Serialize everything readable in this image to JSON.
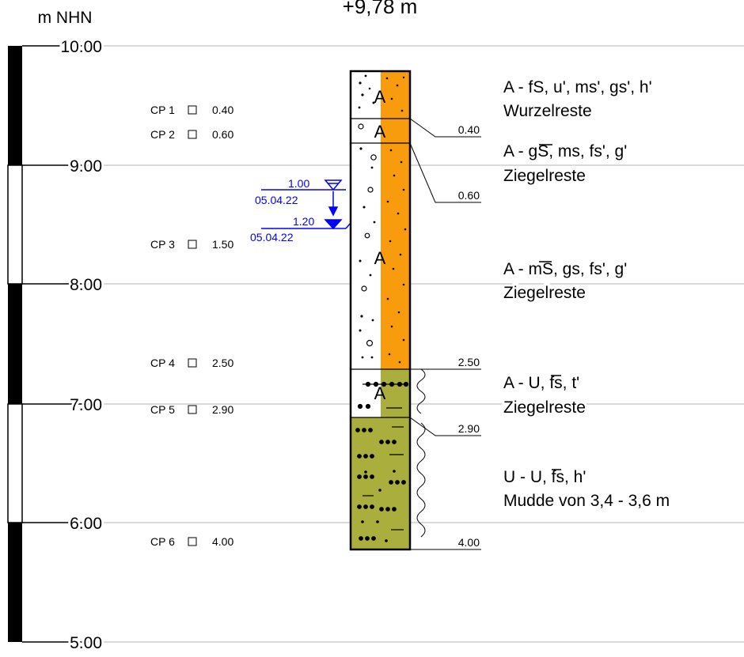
{
  "header": {
    "elevation_title": "+9,78 m",
    "unit_label": "m NHN"
  },
  "scale": {
    "labels": [
      "10.00",
      "9.00",
      "8.00",
      "7.00",
      "6.00",
      "5.00"
    ],
    "top_value": 10.0,
    "bottom_value": 5.0
  },
  "core_samples": [
    {
      "label": "CP 1",
      "depth": "0.40"
    },
    {
      "label": "CP 2",
      "depth": "0.60"
    },
    {
      "label": "CP 3",
      "depth": "1.50"
    },
    {
      "label": "CP 4",
      "depth": "2.50"
    },
    {
      "label": "CP 5",
      "depth": "2.90"
    },
    {
      "label": "CP 6",
      "depth": "4.00"
    }
  ],
  "groundwater": [
    {
      "depth": "1.00",
      "date": "05.04.22"
    },
    {
      "depth": "1.20",
      "date": "05.04.22"
    }
  ],
  "layers": [
    {
      "bottom_depth": "0.40",
      "symbol": "A",
      "description": "A - fS, u', ms', gs', h'",
      "remark": "Wurzelreste",
      "color": "#f89b0c"
    },
    {
      "bottom_depth": "0.60",
      "symbol": "A",
      "description": "A - gS, ms, fs', g'",
      "remark": "Ziegelreste",
      "color": "#f89b0c"
    },
    {
      "bottom_depth": "2.50",
      "symbol": "A",
      "description": "A - mS, gs, fs', g'",
      "remark": "Ziegelreste",
      "color": "#f89b0c"
    },
    {
      "bottom_depth": "2.90",
      "symbol": "A",
      "description": "A - U, fs, t'",
      "remark": "Ziegelreste",
      "color": "#a9ae3c"
    },
    {
      "bottom_depth": "4.00",
      "symbol": "",
      "description": "U - U, fs, h'",
      "remark": "Mudde von 3,4 - 3,6 m",
      "color": "#a9ae3c"
    }
  ],
  "colors": {
    "sand": "#f89b0c",
    "silt": "#a9ae3c",
    "water": "#0000ff",
    "grid": "#b4b4b4"
  }
}
